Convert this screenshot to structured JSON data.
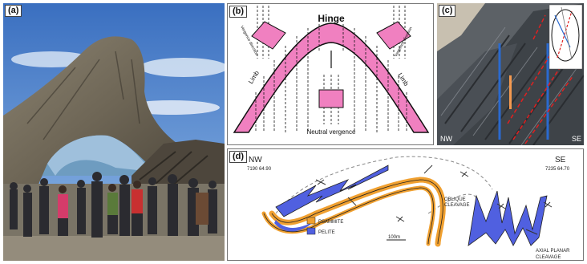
{
  "panels": {
    "a": {
      "label": "(a)"
    },
    "b": {
      "label": "(b)",
      "hinge": "Hinge",
      "limb_left": "Limb",
      "limb_right": "Limb",
      "neutral": "Neutral vergence",
      "vergence_left": "Vergence direction",
      "vergence_right": "Vergence direction"
    },
    "c": {
      "label": "(c)",
      "nw": "NW",
      "se": "SE"
    },
    "d": {
      "label": "(d)",
      "nw": "NW",
      "se": "SE",
      "coord_left": "7190 64.90",
      "coord_right": "7235 64.70",
      "oblique": [
        "OBLIQUE",
        "CLEAVAGE"
      ],
      "axial": [
        "AXIAL PLANAR",
        "CLEAVAGE"
      ],
      "scale": "100m",
      "legend": [
        {
          "name": "PSAMMITE",
          "color": "#f0a030"
        },
        {
          "name": "PELITE",
          "color": "#5060e0"
        }
      ]
    }
  }
}
